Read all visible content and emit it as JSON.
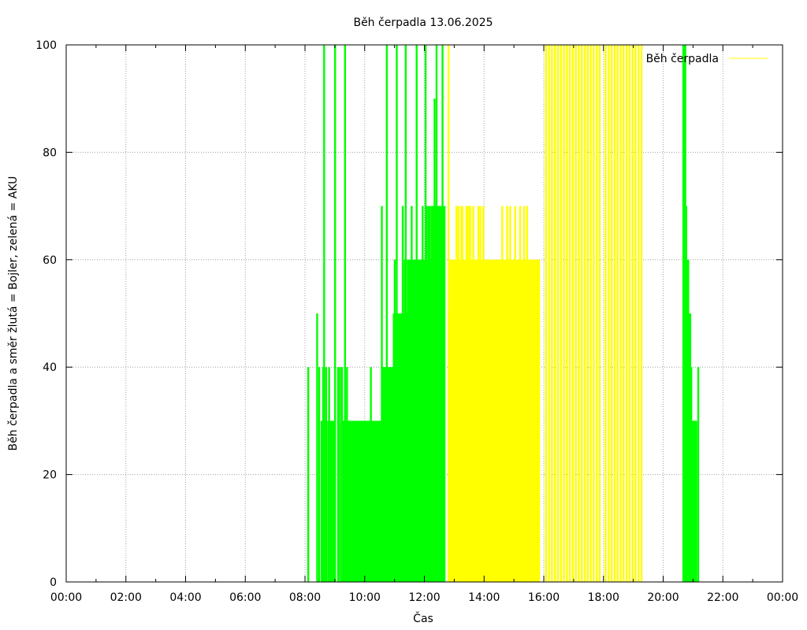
{
  "chart_data": {
    "type": "bar",
    "title": "Běh čerpadla 13.06.2025",
    "xlabel": "Čas",
    "ylabel": "Běh čerpadla a směr žlutá = Bojler, zelená = AKU",
    "xlim": [
      "00:00",
      "24:00"
    ],
    "ylim": [
      0,
      100
    ],
    "x_ticks": [
      "00:00",
      "02:00",
      "04:00",
      "06:00",
      "08:00",
      "10:00",
      "12:00",
      "14:00",
      "16:00",
      "18:00",
      "20:00",
      "22:00",
      "00:00"
    ],
    "y_ticks": [
      0,
      20,
      40,
      60,
      80,
      100
    ],
    "grid": true,
    "legend": {
      "position": "top-right",
      "entries": [
        {
          "name": "Běh čerpadla",
          "color": "#ffff00"
        }
      ]
    },
    "series": [
      {
        "color": "#00ff00",
        "note": "",
        "points": [
          [
            "08:06",
            40
          ],
          [
            "08:15",
            0
          ],
          [
            "08:24",
            50
          ],
          [
            "08:28",
            40
          ],
          [
            "08:33",
            30
          ],
          [
            "08:36",
            40
          ],
          [
            "08:38",
            100
          ],
          [
            "08:40",
            30
          ],
          [
            "08:42",
            40
          ],
          [
            "08:46",
            30
          ],
          [
            "08:48",
            40
          ],
          [
            "08:50",
            30
          ],
          [
            "08:52",
            30
          ],
          [
            "08:54",
            30
          ],
          [
            "08:56",
            30
          ],
          [
            "08:58",
            30
          ],
          [
            "09:00",
            100
          ],
          [
            "09:02",
            0
          ],
          [
            "09:06",
            40
          ],
          [
            "09:10",
            40
          ],
          [
            "09:14",
            40
          ],
          [
            "09:16",
            30
          ],
          [
            "09:18",
            30
          ],
          [
            "09:20",
            100
          ],
          [
            "09:22",
            30
          ],
          [
            "09:24",
            40
          ],
          [
            "09:26",
            30
          ],
          [
            "09:28",
            30
          ],
          [
            "09:30",
            30
          ],
          [
            "09:32",
            30
          ],
          [
            "09:34",
            30
          ],
          [
            "09:36",
            30
          ],
          [
            "09:38",
            30
          ],
          [
            "09:40",
            30
          ],
          [
            "09:42",
            30
          ],
          [
            "09:44",
            30
          ],
          [
            "09:46",
            30
          ],
          [
            "09:48",
            30
          ],
          [
            "09:50",
            30
          ],
          [
            "09:52",
            30
          ],
          [
            "09:54",
            30
          ],
          [
            "09:56",
            30
          ],
          [
            "09:58",
            30
          ],
          [
            "10:00",
            30
          ],
          [
            "10:02",
            30
          ],
          [
            "10:04",
            30
          ],
          [
            "10:06",
            30
          ],
          [
            "10:08",
            30
          ],
          [
            "10:10",
            30
          ],
          [
            "10:12",
            40
          ],
          [
            "10:14",
            30
          ],
          [
            "10:16",
            30
          ],
          [
            "10:18",
            30
          ],
          [
            "10:20",
            30
          ],
          [
            "10:22",
            30
          ],
          [
            "10:24",
            30
          ],
          [
            "10:26",
            30
          ],
          [
            "10:28",
            30
          ],
          [
            "10:30",
            30
          ],
          [
            "10:32",
            30
          ],
          [
            "10:34",
            70
          ],
          [
            "10:36",
            40
          ],
          [
            "10:38",
            40
          ],
          [
            "10:40",
            40
          ],
          [
            "10:42",
            40
          ],
          [
            "10:44",
            100
          ],
          [
            "10:46",
            40
          ],
          [
            "10:48",
            40
          ],
          [
            "10:50",
            40
          ],
          [
            "10:52",
            40
          ],
          [
            "10:54",
            40
          ],
          [
            "10:56",
            40
          ],
          [
            "10:58",
            50
          ],
          [
            "11:00",
            60
          ],
          [
            "11:02",
            50
          ],
          [
            "11:04",
            100
          ],
          [
            "11:06",
            50
          ],
          [
            "11:08",
            50
          ],
          [
            "11:10",
            50
          ],
          [
            "11:12",
            50
          ],
          [
            "11:14",
            50
          ],
          [
            "11:16",
            70
          ],
          [
            "11:18",
            50
          ],
          [
            "11:20",
            60
          ],
          [
            "11:22",
            100
          ],
          [
            "11:24",
            50
          ],
          [
            "11:26",
            60
          ],
          [
            "11:28",
            60
          ],
          [
            "11:30",
            60
          ],
          [
            "11:32",
            60
          ],
          [
            "11:34",
            70
          ],
          [
            "11:36",
            60
          ],
          [
            "11:38",
            60
          ],
          [
            "11:40",
            60
          ],
          [
            "11:42",
            60
          ],
          [
            "11:44",
            100
          ],
          [
            "11:46",
            60
          ],
          [
            "11:48",
            60
          ],
          [
            "11:50",
            60
          ],
          [
            "11:52",
            60
          ],
          [
            "11:54",
            60
          ],
          [
            "11:56",
            70
          ],
          [
            "11:58",
            60
          ],
          [
            "12:00",
            60
          ],
          [
            "12:02",
            100
          ],
          [
            "12:04",
            70
          ],
          [
            "12:06",
            60
          ],
          [
            "12:08",
            70
          ],
          [
            "12:10",
            70
          ],
          [
            "12:12",
            60
          ],
          [
            "12:14",
            70
          ],
          [
            "12:16",
            70
          ],
          [
            "12:18",
            70
          ],
          [
            "12:20",
            90
          ],
          [
            "12:22",
            70
          ],
          [
            "12:24",
            100
          ],
          [
            "12:26",
            70
          ],
          [
            "12:28",
            70
          ],
          [
            "12:30",
            70
          ],
          [
            "12:32",
            70
          ],
          [
            "12:34",
            70
          ],
          [
            "12:36",
            100
          ],
          [
            "12:38",
            70
          ],
          [
            "12:40",
            70
          ],
          [
            "20:40",
            100
          ],
          [
            "20:42",
            100
          ],
          [
            "20:44",
            100
          ],
          [
            "20:46",
            70
          ],
          [
            "20:48",
            60
          ],
          [
            "20:50",
            60
          ],
          [
            "20:52",
            50
          ],
          [
            "20:54",
            50
          ],
          [
            "20:56",
            40
          ],
          [
            "20:58",
            30
          ],
          [
            "21:00",
            30
          ],
          [
            "21:02",
            30
          ],
          [
            "21:04",
            30
          ],
          [
            "21:06",
            30
          ],
          [
            "21:10",
            40
          ]
        ]
      },
      {
        "name": "Běh čerpadla",
        "color": "#ffff00",
        "points": [
          [
            "12:48",
            100
          ],
          [
            "12:50",
            50
          ],
          [
            "12:52",
            60
          ],
          [
            "12:54",
            60
          ],
          [
            "12:56",
            60
          ],
          [
            "12:58",
            60
          ],
          [
            "13:00",
            60
          ],
          [
            "13:02",
            60
          ],
          [
            "13:04",
            70
          ],
          [
            "13:06",
            60
          ],
          [
            "13:08",
            70
          ],
          [
            "13:10",
            60
          ],
          [
            "13:12",
            60
          ],
          [
            "13:14",
            70
          ],
          [
            "13:16",
            70
          ],
          [
            "13:18",
            60
          ],
          [
            "13:20",
            60
          ],
          [
            "13:22",
            60
          ],
          [
            "13:24",
            70
          ],
          [
            "13:26",
            70
          ],
          [
            "13:28",
            70
          ],
          [
            "13:30",
            60
          ],
          [
            "13:32",
            70
          ],
          [
            "13:34",
            60
          ],
          [
            "13:36",
            60
          ],
          [
            "13:38",
            70
          ],
          [
            "13:40",
            60
          ],
          [
            "13:42",
            60
          ],
          [
            "13:44",
            60
          ],
          [
            "13:46",
            60
          ],
          [
            "13:48",
            70
          ],
          [
            "13:50",
            60
          ],
          [
            "13:52",
            70
          ],
          [
            "13:54",
            60
          ],
          [
            "13:56",
            60
          ],
          [
            "13:58",
            70
          ],
          [
            "14:00",
            60
          ],
          [
            "14:02",
            60
          ],
          [
            "14:04",
            60
          ],
          [
            "14:06",
            60
          ],
          [
            "14:08",
            60
          ],
          [
            "14:10",
            60
          ],
          [
            "14:12",
            60
          ],
          [
            "14:14",
            60
          ],
          [
            "14:16",
            60
          ],
          [
            "14:18",
            60
          ],
          [
            "14:20",
            60
          ],
          [
            "14:22",
            60
          ],
          [
            "14:24",
            60
          ],
          [
            "14:26",
            60
          ],
          [
            "14:28",
            60
          ],
          [
            "14:30",
            60
          ],
          [
            "14:32",
            60
          ],
          [
            "14:34",
            60
          ],
          [
            "14:36",
            70
          ],
          [
            "14:38",
            60
          ],
          [
            "14:40",
            60
          ],
          [
            "14:42",
            60
          ],
          [
            "14:44",
            60
          ],
          [
            "14:46",
            70
          ],
          [
            "14:48",
            60
          ],
          [
            "14:50",
            60
          ],
          [
            "14:52",
            70
          ],
          [
            "14:54",
            60
          ],
          [
            "14:56",
            60
          ],
          [
            "14:58",
            60
          ],
          [
            "15:00",
            60
          ],
          [
            "15:02",
            70
          ],
          [
            "15:04",
            60
          ],
          [
            "15:06",
            60
          ],
          [
            "15:08",
            60
          ],
          [
            "15:10",
            60
          ],
          [
            "15:12",
            70
          ],
          [
            "15:14",
            60
          ],
          [
            "15:16",
            60
          ],
          [
            "15:18",
            60
          ],
          [
            "15:20",
            70
          ],
          [
            "15:22",
            60
          ],
          [
            "15:24",
            60
          ],
          [
            "15:26",
            70
          ],
          [
            "15:28",
            60
          ],
          [
            "15:30",
            60
          ],
          [
            "15:32",
            60
          ],
          [
            "15:34",
            60
          ],
          [
            "15:36",
            60
          ],
          [
            "15:38",
            60
          ],
          [
            "15:40",
            60
          ],
          [
            "15:42",
            60
          ],
          [
            "15:44",
            60
          ],
          [
            "15:46",
            60
          ],
          [
            "15:48",
            60
          ],
          [
            "15:50",
            60
          ],
          [
            "16:04",
            100
          ],
          [
            "16:10",
            100
          ],
          [
            "16:16",
            100
          ],
          [
            "16:22",
            100
          ],
          [
            "16:28",
            100
          ],
          [
            "16:34",
            100
          ],
          [
            "16:40",
            100
          ],
          [
            "16:46",
            100
          ],
          [
            "16:52",
            100
          ],
          [
            "16:58",
            100
          ],
          [
            "17:04",
            100
          ],
          [
            "17:10",
            100
          ],
          [
            "17:16",
            100
          ],
          [
            "17:22",
            100
          ],
          [
            "17:28",
            100
          ],
          [
            "17:34",
            100
          ],
          [
            "17:40",
            100
          ],
          [
            "17:46",
            100
          ],
          [
            "17:52",
            100
          ],
          [
            "18:04",
            100
          ],
          [
            "18:10",
            100
          ],
          [
            "18:16",
            100
          ],
          [
            "18:22",
            100
          ],
          [
            "18:28",
            100
          ],
          [
            "18:34",
            100
          ],
          [
            "18:40",
            100
          ],
          [
            "18:46",
            100
          ],
          [
            "18:52",
            100
          ],
          [
            "18:58",
            100
          ],
          [
            "19:04",
            100
          ],
          [
            "19:10",
            100
          ],
          [
            "19:16",
            100
          ]
        ]
      }
    ]
  }
}
